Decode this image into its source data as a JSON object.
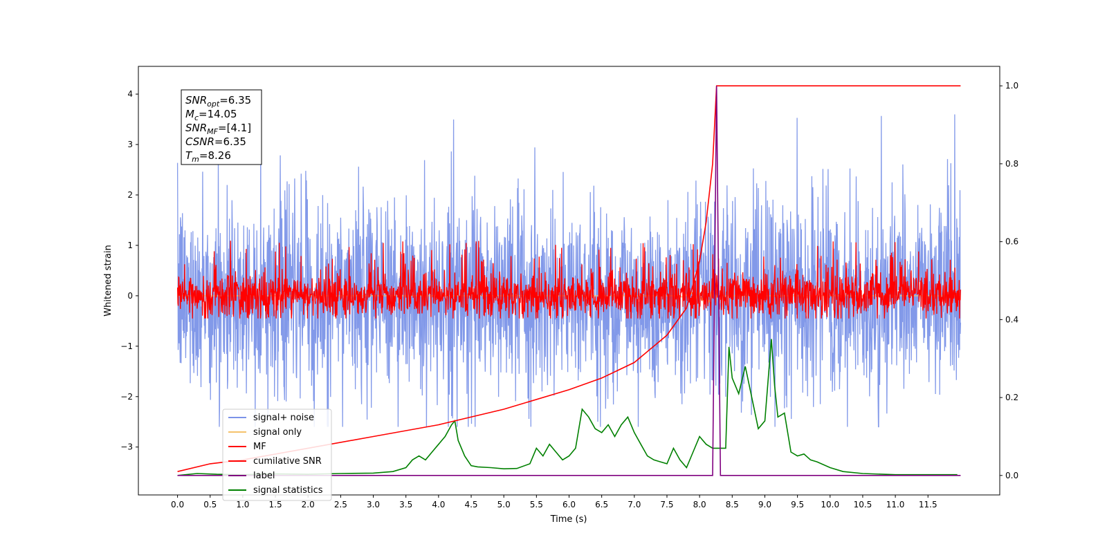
{
  "chart_data": {
    "type": "line",
    "title": "",
    "xlabel": "Time (s)",
    "ylabel": "Whitened strain",
    "xlim": [
      -0.6,
      12.6
    ],
    "ylim": [
      -3.95,
      4.55
    ],
    "y2lim": [
      -0.05,
      1.05
    ],
    "grid": false,
    "legend_position": "lower-left",
    "x_ticks": [
      "0.0",
      "0.5",
      "1.0",
      "1.5",
      "2.0",
      "2.5",
      "3.0",
      "3.5",
      "4.0",
      "4.5",
      "5.0",
      "5.5",
      "6.0",
      "6.5",
      "7.0",
      "7.5",
      "8.0",
      "8.5",
      "9.0",
      "9.5",
      "10.0",
      "10.5",
      "11.0",
      "11.5"
    ],
    "y_ticks": [
      "4",
      "3",
      "2",
      "1",
      "0",
      "−1",
      "−2",
      "−3"
    ],
    "y2_ticks": [
      "1.0",
      "0.8",
      "0.6",
      "0.4",
      "0.2",
      "0.0"
    ],
    "annotation": {
      "lines": [
        {
          "var": "SNR",
          "sub": "opt",
          "value": "=6.35"
        },
        {
          "var": "M",
          "sub": "c",
          "value": "=14.05"
        },
        {
          "var": "SNR",
          "sub": "MF",
          "value": "=[4.1]"
        },
        {
          "var": "CSNR",
          "sub": "",
          "value": "=6.35"
        },
        {
          "var": "T",
          "sub": "m",
          "value": "=8.26"
        }
      ]
    },
    "series": [
      {
        "name": "signal+ noise",
        "color": "#7b93e8",
        "axis": "left",
        "description": "noisy strain",
        "x_range": [
          0,
          12
        ],
        "spread": [
          -2.6,
          3.6
        ]
      },
      {
        "name": "signal only",
        "color": "#f5c26b",
        "axis": "left",
        "x_range": [
          0,
          12
        ]
      },
      {
        "name": "MF",
        "color": "#ff0000",
        "axis": "left",
        "x_range": [
          0,
          12
        ],
        "spread": [
          -0.45,
          1.1
        ]
      },
      {
        "name": "cumilative SNR",
        "color": "#ff0000",
        "axis": "right",
        "x": [
          0.0,
          0.5,
          1.0,
          2.0,
          3.0,
          4.0,
          5.0,
          6.0,
          6.5,
          7.0,
          7.5,
          7.8,
          8.0,
          8.1,
          8.2,
          8.26,
          12.0
        ],
        "values": [
          0.01,
          0.03,
          0.04,
          0.07,
          0.1,
          0.13,
          0.17,
          0.22,
          0.25,
          0.29,
          0.36,
          0.43,
          0.55,
          0.65,
          0.8,
          1.0,
          1.0
        ]
      },
      {
        "name": "label",
        "color": "#800080",
        "axis": "right",
        "x": [
          0.0,
          8.2,
          8.26,
          8.32,
          12.0
        ],
        "values": [
          0.0,
          0.0,
          1.0,
          0.0,
          0.0
        ]
      },
      {
        "name": "signal statistics",
        "color": "#008000",
        "axis": "right",
        "x": [
          0.0,
          0.3,
          0.6,
          1.0,
          1.5,
          2.0,
          2.5,
          3.0,
          3.3,
          3.5,
          3.6,
          3.7,
          3.8,
          3.9,
          4.0,
          4.1,
          4.2,
          4.25,
          4.3,
          4.4,
          4.5,
          4.6,
          4.8,
          5.0,
          5.2,
          5.4,
          5.5,
          5.6,
          5.7,
          5.8,
          5.9,
          6.0,
          6.1,
          6.2,
          6.3,
          6.4,
          6.5,
          6.6,
          6.7,
          6.8,
          6.9,
          7.0,
          7.1,
          7.2,
          7.3,
          7.4,
          7.5,
          7.6,
          7.7,
          7.8,
          7.9,
          8.0,
          8.1,
          8.2,
          8.3,
          8.4,
          8.45,
          8.5,
          8.6,
          8.7,
          8.8,
          8.9,
          9.0,
          9.1,
          9.15,
          9.2,
          9.3,
          9.4,
          9.5,
          9.6,
          9.7,
          9.8,
          10.0,
          10.2,
          10.5,
          11.0,
          11.5,
          11.95
        ],
        "values": [
          0.0,
          0.005,
          0.003,
          0.002,
          0.004,
          0.003,
          0.005,
          0.006,
          0.01,
          0.02,
          0.04,
          0.05,
          0.04,
          0.06,
          0.08,
          0.1,
          0.13,
          0.14,
          0.09,
          0.05,
          0.025,
          0.022,
          0.02,
          0.017,
          0.018,
          0.03,
          0.07,
          0.05,
          0.08,
          0.06,
          0.04,
          0.05,
          0.07,
          0.17,
          0.15,
          0.12,
          0.11,
          0.13,
          0.1,
          0.13,
          0.15,
          0.11,
          0.08,
          0.05,
          0.04,
          0.035,
          0.03,
          0.07,
          0.04,
          0.02,
          0.06,
          0.1,
          0.08,
          0.07,
          0.07,
          0.07,
          0.33,
          0.25,
          0.21,
          0.28,
          0.2,
          0.12,
          0.14,
          0.35,
          0.23,
          0.15,
          0.16,
          0.06,
          0.05,
          0.055,
          0.04,
          0.035,
          0.02,
          0.01,
          0.005,
          0.002,
          0.002,
          0.002
        ]
      }
    ]
  }
}
